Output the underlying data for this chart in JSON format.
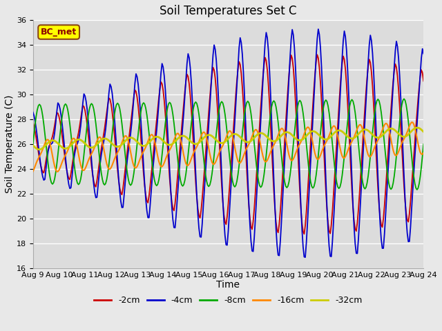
{
  "title": "Soil Temperatures Set C",
  "xlabel": "Time",
  "ylabel": "Soil Temperature (C)",
  "annotation": "BC_met",
  "annotation_color": "#8B0000",
  "ylim": [
    16,
    36
  ],
  "yticks": [
    16,
    18,
    20,
    22,
    24,
    26,
    28,
    30,
    32,
    34,
    36
  ],
  "xtick_labels": [
    "Aug 9",
    "Aug 10",
    "Aug 11",
    "Aug 12",
    "Aug 13",
    "Aug 14",
    "Aug 15",
    "Aug 16",
    "Aug 17",
    "Aug 18",
    "Aug 19",
    "Aug 20",
    "Aug 21",
    "Aug 22",
    "Aug 23",
    "Aug 24"
  ],
  "series_colors": [
    "#cc0000",
    "#0000cc",
    "#00aa00",
    "#ff8800",
    "#cccc00"
  ],
  "series_labels": [
    "-2cm",
    "-4cm",
    "-8cm",
    "-16cm",
    "-32cm"
  ],
  "series_linewidths": [
    1.3,
    1.3,
    1.3,
    1.5,
    2.0
  ],
  "background_color": "#e8e8e8",
  "plot_bg_color": "#dcdcdc",
  "grid_color": "#ffffff",
  "title_fontsize": 12,
  "axis_label_fontsize": 10,
  "tick_label_fontsize": 8
}
